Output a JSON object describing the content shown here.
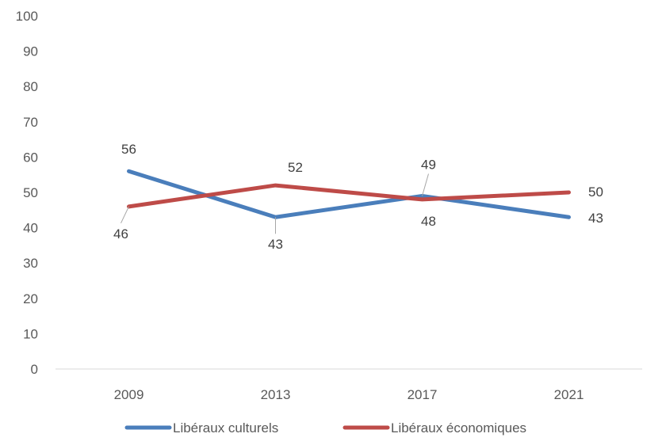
{
  "chart_data": {
    "type": "line",
    "title": "",
    "xlabel": "",
    "ylabel": "",
    "categories": [
      "2009",
      "2013",
      "2017",
      "2021"
    ],
    "ylim": [
      0,
      100
    ],
    "yticks": [
      0,
      10,
      20,
      30,
      40,
      50,
      60,
      70,
      80,
      90,
      100
    ],
    "grid": false,
    "legend": "bottom",
    "series": [
      {
        "name": "Libéraux culturels",
        "color": "#4a7ebb",
        "values": [
          56,
          43,
          49,
          43
        ],
        "labels": [
          "56",
          "43",
          "49",
          "43"
        ]
      },
      {
        "name": "Libéraux économiques",
        "color": "#be4b48",
        "values": [
          46,
          52,
          48,
          50
        ],
        "labels": [
          "46",
          "52",
          "48",
          "50"
        ]
      }
    ]
  }
}
